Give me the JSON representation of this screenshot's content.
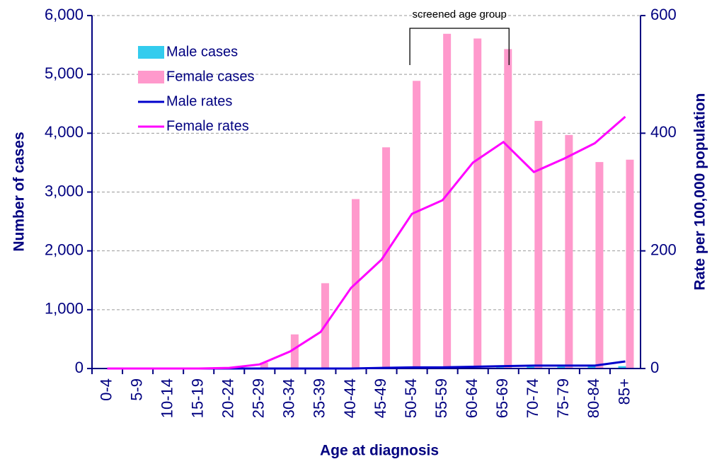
{
  "chart_data": {
    "type": "bar",
    "annotation": "screened age group",
    "x_label": "Age at diagnosis",
    "y_label": "Number of cases",
    "y2_label": "Rate per 100,000 population",
    "categories": [
      "0-4",
      "5-9",
      "10-14",
      "15-19",
      "20-24",
      "25-29",
      "30-34",
      "35-39",
      "40-44",
      "45-49",
      "50-54",
      "55-59",
      "60-64",
      "65-69",
      "70-74",
      "75-79",
      "80-84",
      "85+"
    ],
    "series": [
      {
        "name": "Male cases",
        "type": "bar",
        "color": "#33ccee",
        "values": [
          0,
          0,
          0,
          0,
          0,
          0,
          0,
          0,
          0,
          0,
          5,
          10,
          15,
          20,
          30,
          30,
          40,
          40
        ]
      },
      {
        "name": "Female cases",
        "type": "bar",
        "color": "#ff99cc",
        "values": [
          0,
          0,
          0,
          0,
          20,
          100,
          580,
          1450,
          2880,
          3760,
          4890,
          5690,
          5610,
          5430,
          4210,
          3970,
          3510,
          3550
        ]
      },
      {
        "name": "Male rates",
        "type": "line",
        "axis": "y2",
        "color": "#0000cc",
        "values": [
          0,
          0,
          0,
          0,
          0,
          0,
          0,
          0,
          0,
          1,
          2,
          2,
          3,
          4,
          5,
          5,
          5,
          12
        ]
      },
      {
        "name": "Female rates",
        "type": "line",
        "axis": "y2",
        "color": "#ff00ff",
        "values": [
          0,
          0,
          0,
          0,
          1,
          7,
          29,
          62,
          137,
          185,
          263,
          286,
          350,
          385,
          334,
          357,
          383,
          428
        ]
      }
    ],
    "ylim": [
      0,
      6000
    ],
    "yticks": [
      0,
      {
        "value": 1000,
        "label": "1,000"
      },
      {
        "value": 2000,
        "label": "2,000"
      },
      {
        "value": 3000,
        "label": "3,000"
      },
      {
        "value": 4000,
        "label": "4,000"
      },
      {
        "value": 5000,
        "label": "5,000"
      },
      {
        "value": 6000,
        "label": "6,000"
      }
    ],
    "y2lim": [
      0,
      600
    ],
    "y2ticks": [
      0,
      200,
      400,
      600
    ],
    "grid": true,
    "legend": "upper-left"
  }
}
